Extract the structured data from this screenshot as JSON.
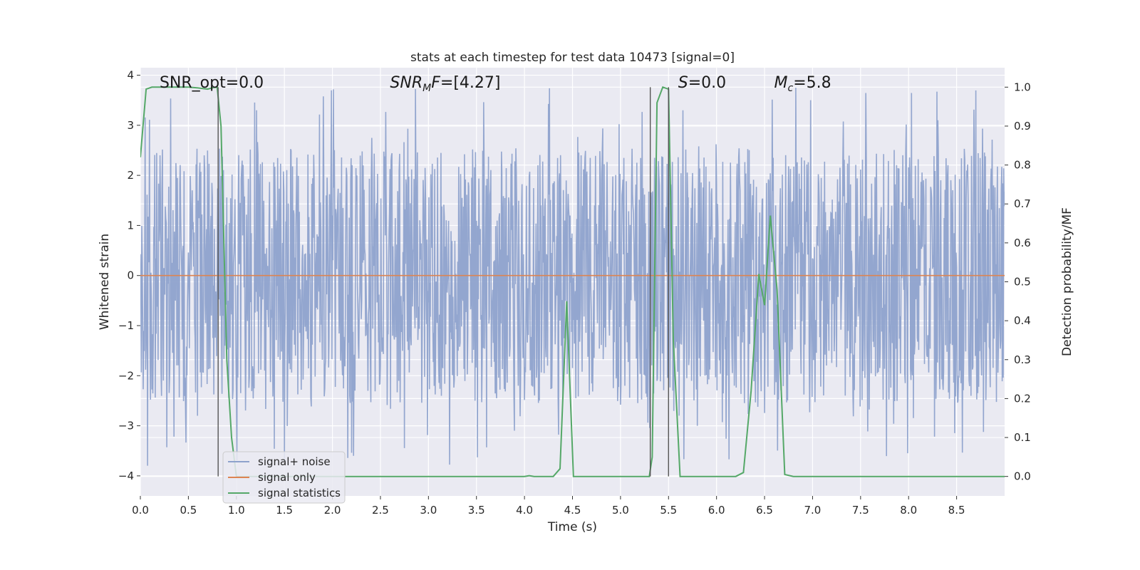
{
  "chart_data": {
    "type": "line",
    "title": "stats at each timestep for test data 10473 [signal=0]",
    "xlabel": "Time (s)",
    "ylabel": "Whitened strain",
    "y2label": "Detection probability/MF",
    "xlim": [
      0,
      9.0
    ],
    "ylim": [
      -4.4,
      4.15
    ],
    "y2lim": [
      -0.05,
      1.05
    ],
    "x_ticks": [
      "0.0",
      "0.5",
      "1.0",
      "1.5",
      "2.0",
      "2.5",
      "3.0",
      "3.5",
      "4.0",
      "4.5",
      "5.0",
      "5.5",
      "6.0",
      "6.5",
      "7.0",
      "7.5",
      "8.0",
      "8.5"
    ],
    "y_ticks": [
      "4",
      "3",
      "2",
      "1",
      "0",
      "−1",
      "−2",
      "−3",
      "−4"
    ],
    "y2_ticks": [
      "1.0",
      "0.9",
      "0.8",
      "0.7",
      "0.6",
      "0.5",
      "0.4",
      "0.3",
      "0.2",
      "0.1",
      "0.0"
    ],
    "grid": true,
    "legend_position": "lower-left",
    "annotations": [
      {
        "text": "SNR_opt=0.0",
        "x": 0.2
      },
      {
        "text": "SNR_MF=[4.27]",
        "x": 2.6,
        "math": "snrmf"
      },
      {
        "text": "S=0.0",
        "x": 5.6,
        "math": "s"
      },
      {
        "text": "M_c=5.8",
        "x": 6.6,
        "math": "mc"
      }
    ],
    "vertical_markers": [
      {
        "x": 0.81,
        "y2_top": 1.0
      },
      {
        "x": 5.31,
        "y2_top": 1.0
      },
      {
        "x": 5.5,
        "y2_top": 1.0
      }
    ],
    "series": [
      {
        "name": "signal+ noise",
        "axis": "left",
        "style": "noise",
        "color": "#8ea2cc",
        "sample_rate": 200,
        "typical_abs": 1.45,
        "seed": 10473
      },
      {
        "name": "signal only",
        "axis": "left",
        "color": "#dd8452",
        "x": [
          0,
          9.0
        ],
        "y": [
          0,
          0
        ]
      },
      {
        "name": "signal statistics",
        "axis": "right",
        "color": "#55a868",
        "x": [
          0,
          0.06,
          0.12,
          0.2,
          0.3,
          0.4,
          0.5,
          0.6,
          0.7,
          0.76,
          0.8,
          0.84,
          0.9,
          0.95,
          1.0,
          1.05,
          1.5,
          2.0,
          2.5,
          3.0,
          3.5,
          4.0,
          4.05,
          4.1,
          4.3,
          4.37,
          4.44,
          4.51,
          4.6,
          5.0,
          5.3,
          5.33,
          5.38,
          5.44,
          5.5,
          5.55,
          5.62,
          5.7,
          6.0,
          6.2,
          6.28,
          6.36,
          6.44,
          6.5,
          6.56,
          6.63,
          6.71,
          6.8,
          7.0,
          8.0,
          9.0
        ],
        "y": [
          0.82,
          0.995,
          1.0,
          1.0,
          1.0,
          1.0,
          1.0,
          0.998,
          0.995,
          0.999,
          1.0,
          0.9,
          0.3,
          0.1,
          0.0,
          0.0,
          0.0,
          0.0,
          0.0,
          0.0,
          0.0,
          0.0,
          0.002,
          0.0,
          0.0,
          0.02,
          0.45,
          0.0,
          0.0,
          0.0,
          0.0,
          0.05,
          0.96,
          1.0,
          0.995,
          0.35,
          0.0,
          0.0,
          0.0,
          0.0,
          0.01,
          0.22,
          0.52,
          0.44,
          0.67,
          0.48,
          0.005,
          0.0,
          0.0,
          0.0,
          0.0
        ]
      }
    ]
  }
}
